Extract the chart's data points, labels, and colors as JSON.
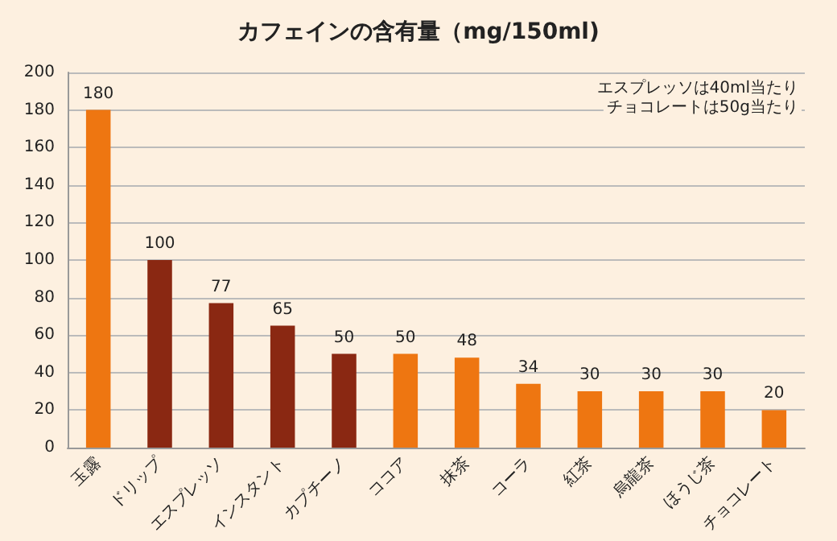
{
  "chart_data": {
    "type": "bar",
    "title": "カフェインの含有量（mg/150ml)",
    "categories": [
      "玉露",
      "ドリップ",
      "エスプレッソ",
      "インスタント",
      "カプチーノ",
      "ココア",
      "抹茶",
      "コーラ",
      "紅茶",
      "烏龍茶",
      "ほうじ茶",
      "チョコレート"
    ],
    "values": [
      180,
      100,
      77,
      65,
      50,
      50,
      48,
      34,
      30,
      30,
      30,
      20
    ],
    "colors": [
      "#ee7611",
      "#8a2812",
      "#8a2812",
      "#8a2812",
      "#8a2812",
      "#ee7611",
      "#ee7611",
      "#ee7611",
      "#ee7611",
      "#ee7611",
      "#ee7611",
      "#ee7611"
    ],
    "ylim": [
      0,
      200
    ],
    "yticks": [
      0,
      20,
      40,
      60,
      80,
      100,
      120,
      140,
      160,
      180,
      200
    ],
    "grid": "y",
    "data_labels": true,
    "annotations": [
      "エスプレッソは40ml当たり",
      "チョコレートは50g当たり"
    ]
  }
}
